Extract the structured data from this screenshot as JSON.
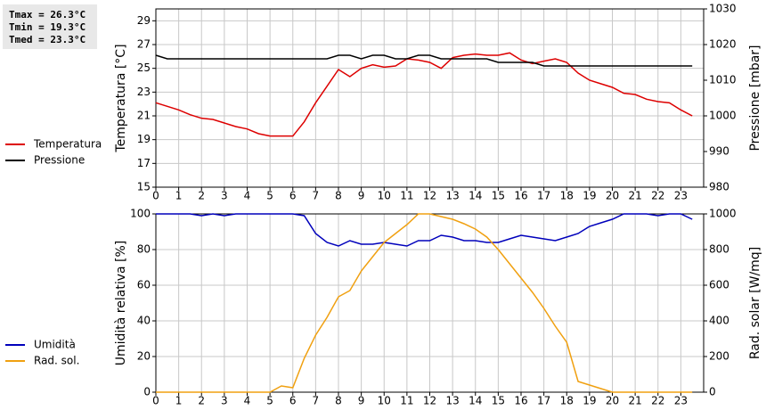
{
  "chart_data": [
    {
      "type": "line",
      "annotations": [
        "Tmax = 26.3°C",
        "Tmin = 19.3°C",
        "Tmed = 23.3°C"
      ],
      "y_label": "Temperatura [°C]",
      "y2_label": "Pressione [mbar]",
      "x": [
        0,
        0.5,
        1,
        1.5,
        2,
        2.5,
        3,
        3.5,
        4,
        4.5,
        5,
        5.5,
        6,
        6.5,
        7,
        7.5,
        8,
        8.5,
        9,
        9.5,
        10,
        10.5,
        11,
        11.5,
        12,
        12.5,
        13,
        13.5,
        14,
        14.5,
        15,
        15.5,
        16,
        16.5,
        17,
        17.5,
        18,
        18.5,
        19,
        19.5,
        20,
        20.5,
        21,
        21.5,
        22,
        22.5,
        23,
        23.5
      ],
      "xlim": [
        0,
        24
      ],
      "xticks": [
        0,
        1,
        2,
        3,
        4,
        5,
        6,
        7,
        8,
        9,
        10,
        11,
        12,
        13,
        14,
        15,
        16,
        17,
        18,
        19,
        20,
        21,
        22,
        23
      ],
      "ylim": [
        15,
        30
      ],
      "yticks": [
        15,
        17,
        19,
        21,
        23,
        25,
        27,
        29
      ],
      "y2lim": [
        980,
        1030
      ],
      "y2ticks": [
        980,
        990,
        1000,
        1010,
        1020,
        1030
      ],
      "grid": true,
      "legend": "left",
      "series": [
        {
          "name": "Temperatura",
          "color": "#dd0000",
          "values": [
            22.1,
            21.8,
            21.5,
            21.1,
            20.8,
            20.7,
            20.4,
            20.1,
            19.9,
            19.5,
            19.3,
            19.3,
            19.3,
            20.5,
            22.1,
            23.5,
            24.9,
            24.3,
            25.0,
            25.3,
            25.1,
            25.2,
            25.8,
            25.7,
            25.5,
            25.0,
            25.9,
            26.1,
            26.2,
            26.1,
            26.1,
            26.3,
            25.7,
            25.4,
            25.6,
            25.8,
            25.5,
            24.6,
            24.0,
            23.7,
            23.4,
            22.9,
            22.8,
            22.4,
            22.2,
            22.1,
            21.5,
            21.0
          ]
        },
        {
          "name": "Pressione",
          "color": "#000000",
          "axis": "y2",
          "values": [
            1017,
            1016,
            1016,
            1016,
            1016,
            1016,
            1016,
            1016,
            1016,
            1016,
            1016,
            1016,
            1016,
            1016,
            1016,
            1016,
            1017,
            1017,
            1016,
            1017,
            1017,
            1016,
            1016,
            1017,
            1017,
            1016,
            1016,
            1016,
            1016,
            1016,
            1015,
            1015,
            1015,
            1015,
            1014,
            1014,
            1014,
            1014,
            1014,
            1014,
            1014,
            1014,
            1014,
            1014,
            1014,
            1014,
            1014,
            1014
          ]
        }
      ]
    },
    {
      "type": "line",
      "y_label": "Umidità relativa [%]",
      "y2_label": "Rad. solar [W/mq]",
      "x": [
        0,
        0.5,
        1,
        1.5,
        2,
        2.5,
        3,
        3.5,
        4,
        4.5,
        5,
        5.5,
        6,
        6.5,
        7,
        7.5,
        8,
        8.5,
        9,
        9.5,
        10,
        10.5,
        11,
        11.5,
        12,
        12.5,
        13,
        13.5,
        14,
        14.5,
        15,
        15.5,
        16,
        16.5,
        17,
        17.5,
        18,
        18.5,
        19,
        19.5,
        20,
        20.5,
        21,
        21.5,
        22,
        22.5,
        23,
        23.5
      ],
      "xlim": [
        0,
        24
      ],
      "xticks": [
        0,
        1,
        2,
        3,
        4,
        5,
        6,
        7,
        8,
        9,
        10,
        11,
        12,
        13,
        14,
        15,
        16,
        17,
        18,
        19,
        20,
        21,
        22,
        23
      ],
      "ylim": [
        0,
        100
      ],
      "yticks": [
        0,
        20,
        40,
        60,
        80,
        100
      ],
      "y2lim": [
        0,
        1000
      ],
      "y2ticks": [
        0,
        200,
        400,
        600,
        800,
        1000
      ],
      "grid": true,
      "legend": "left",
      "series": [
        {
          "name": "Umidità",
          "color": "#0000bb",
          "values": [
            100,
            100,
            100,
            100,
            99,
            100,
            99,
            100,
            100,
            100,
            100,
            100,
            100,
            99,
            89,
            84,
            82,
            85,
            83,
            83,
            84,
            83,
            82,
            85,
            85,
            88,
            87,
            85,
            85,
            84,
            84,
            86,
            88,
            87,
            86,
            85,
            87,
            89,
            93,
            95,
            97,
            100,
            100,
            100,
            99,
            100,
            100,
            97
          ]
        },
        {
          "name": "Rad. sol.",
          "color": "#f0a010",
          "axis": "y2",
          "values": [
            0,
            0,
            0,
            0,
            0,
            0,
            0,
            0,
            0,
            0,
            0,
            35,
            25,
            190,
            320,
            420,
            535,
            570,
            680,
            760,
            840,
            890,
            940,
            1000,
            1000,
            985,
            970,
            945,
            915,
            870,
            800,
            720,
            640,
            560,
            470,
            370,
            280,
            60,
            40,
            20,
            0,
            0,
            0,
            0,
            0,
            0,
            0,
            0
          ]
        }
      ]
    }
  ]
}
